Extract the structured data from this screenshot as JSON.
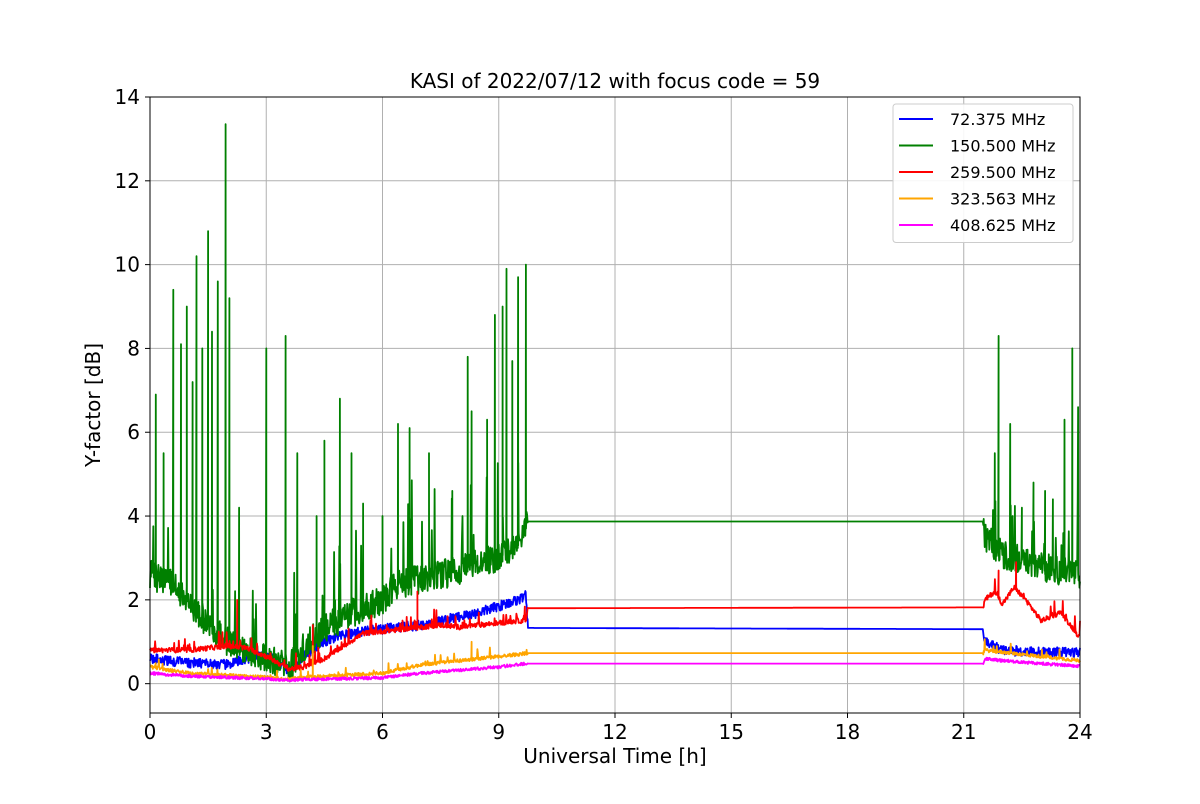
{
  "chart_data": {
    "type": "line",
    "title": "KASI of 2022/07/12 with focus code = 59",
    "xlabel": "Universal Time [h]",
    "ylabel": "Y-factor [dB]",
    "xlim": [
      0,
      24
    ],
    "ylim": [
      -0.7,
      14
    ],
    "xticks": [
      0,
      3,
      6,
      9,
      12,
      15,
      18,
      21,
      24
    ],
    "yticks": [
      0,
      2,
      4,
      6,
      8,
      10,
      12,
      14
    ],
    "grid": true,
    "legend_position": "top-right",
    "series": [
      {
        "name": " 72.375 MHz",
        "color": "#0000ff",
        "noise": 0.12,
        "x": [
          0,
          1,
          2,
          2.5,
          3,
          3.3,
          3.6,
          4,
          4.5,
          5,
          5.5,
          6,
          6.5,
          7,
          7.5,
          8,
          8.5,
          9,
          9.5,
          9.7,
          9.75,
          21.5,
          21.55,
          22,
          23,
          24
        ],
        "y": [
          0.6,
          0.5,
          0.45,
          0.6,
          0.7,
          0.5,
          0.3,
          0.7,
          1.0,
          1.15,
          1.25,
          1.3,
          1.35,
          1.4,
          1.5,
          1.6,
          1.7,
          1.85,
          2.0,
          2.1,
          1.33,
          1.3,
          1.0,
          0.8,
          0.75,
          0.75
        ]
      },
      {
        "name": "150.500 MHz",
        "color": "#008000",
        "noise": 0.35,
        "x": [
          0,
          0.5,
          1,
          1.5,
          2,
          2.5,
          3,
          3.3,
          3.6,
          4,
          4.5,
          5,
          5.5,
          6,
          6.3,
          6.5,
          7,
          7.5,
          8,
          8.5,
          9,
          9.5,
          9.7,
          9.75,
          21.5,
          21.55,
          22,
          23,
          24
        ],
        "y": [
          2.6,
          2.4,
          2.0,
          1.4,
          1.0,
          0.8,
          0.6,
          0.5,
          0.4,
          0.9,
          1.3,
          1.6,
          1.8,
          2.0,
          2.3,
          2.4,
          2.5,
          2.6,
          2.7,
          2.9,
          3.0,
          3.3,
          3.7,
          3.87,
          3.87,
          3.5,
          3.1,
          2.8,
          2.6
        ],
        "spikes": [
          [
            0.15,
            6.9
          ],
          [
            0.35,
            5.5
          ],
          [
            0.6,
            9.4
          ],
          [
            0.8,
            8.1
          ],
          [
            0.95,
            9.0
          ],
          [
            1.1,
            7.2
          ],
          [
            1.2,
            10.2
          ],
          [
            1.35,
            8.0
          ],
          [
            1.5,
            10.8
          ],
          [
            1.6,
            8.4
          ],
          [
            1.75,
            9.6
          ],
          [
            1.95,
            13.35
          ],
          [
            2.05,
            9.2
          ],
          [
            2.3,
            4.2
          ],
          [
            3.0,
            8.0
          ],
          [
            3.5,
            8.3
          ],
          [
            3.8,
            5.5
          ],
          [
            4.3,
            4.0
          ],
          [
            4.5,
            5.8
          ],
          [
            4.9,
            6.8
          ],
          [
            5.2,
            5.5
          ],
          [
            5.5,
            4.3
          ],
          [
            6.0,
            4.0
          ],
          [
            6.4,
            6.2
          ],
          [
            6.7,
            6.1
          ],
          [
            7.2,
            5.5
          ],
          [
            7.8,
            4.6
          ],
          [
            8.2,
            7.8
          ],
          [
            8.3,
            6.5
          ],
          [
            8.7,
            6.3
          ],
          [
            8.9,
            8.8
          ],
          [
            9.1,
            9.0
          ],
          [
            9.2,
            9.9
          ],
          [
            9.35,
            7.7
          ],
          [
            9.5,
            9.7
          ],
          [
            9.7,
            10.0
          ],
          [
            21.8,
            5.5
          ],
          [
            21.9,
            8.3
          ],
          [
            22.2,
            6.2
          ],
          [
            22.5,
            4.2
          ],
          [
            22.8,
            4.8
          ],
          [
            23.1,
            4.6
          ],
          [
            23.3,
            4.4
          ],
          [
            23.6,
            6.3
          ],
          [
            23.8,
            8.0
          ],
          [
            23.95,
            6.6
          ]
        ]
      },
      {
        "name": "259.500 MHz",
        "color": "#ff0000",
        "noise": 0.06,
        "x": [
          0,
          1,
          2,
          2.5,
          3,
          3.3,
          3.6,
          4,
          4.5,
          5,
          5.5,
          6,
          6.5,
          7,
          7.5,
          8,
          8.5,
          9,
          9.5,
          9.7,
          9.75,
          21.5,
          21.55,
          21.8,
          22,
          22.3,
          22.6,
          23,
          23.5,
          24
        ],
        "y": [
          0.8,
          0.8,
          0.9,
          0.85,
          0.65,
          0.5,
          0.35,
          0.4,
          0.6,
          0.9,
          1.2,
          1.25,
          1.3,
          1.35,
          1.4,
          1.35,
          1.4,
          1.45,
          1.5,
          1.5,
          1.8,
          1.82,
          2.0,
          2.2,
          1.9,
          2.3,
          2.0,
          1.5,
          1.7,
          1.1
        ],
        "spikes": [
          [
            2.25,
            2.0
          ],
          [
            4.2,
            1.4
          ],
          [
            6.9,
            2.2
          ],
          [
            21.9,
            2.7
          ],
          [
            22.35,
            2.9
          ]
        ]
      },
      {
        "name": "323.563 MHz",
        "color": "#ffa500",
        "noise": 0.04,
        "x": [
          0,
          1,
          2,
          3,
          3.5,
          4,
          5,
          6,
          6.5,
          7,
          8,
          9,
          9.7,
          9.75,
          21.5,
          21.55,
          22,
          23,
          24
        ],
        "y": [
          0.4,
          0.25,
          0.2,
          0.15,
          0.1,
          0.15,
          0.2,
          0.25,
          0.35,
          0.45,
          0.55,
          0.65,
          0.72,
          0.73,
          0.73,
          0.8,
          0.75,
          0.65,
          0.55
        ],
        "spikes": [
          [
            4.2,
            0.9
          ],
          [
            8.3,
            1.0
          ]
        ]
      },
      {
        "name": "408.625 MHz",
        "color": "#ff00ff",
        "noise": 0.035,
        "x": [
          0,
          1,
          2,
          3,
          3.5,
          4,
          5,
          6,
          6.5,
          7,
          8,
          9,
          9.7,
          9.75,
          21.5,
          21.55,
          22,
          23,
          24
        ],
        "y": [
          0.25,
          0.18,
          0.15,
          0.12,
          0.08,
          0.1,
          0.12,
          0.14,
          0.2,
          0.25,
          0.32,
          0.4,
          0.48,
          0.48,
          0.48,
          0.6,
          0.55,
          0.48,
          0.42
        ]
      }
    ]
  }
}
